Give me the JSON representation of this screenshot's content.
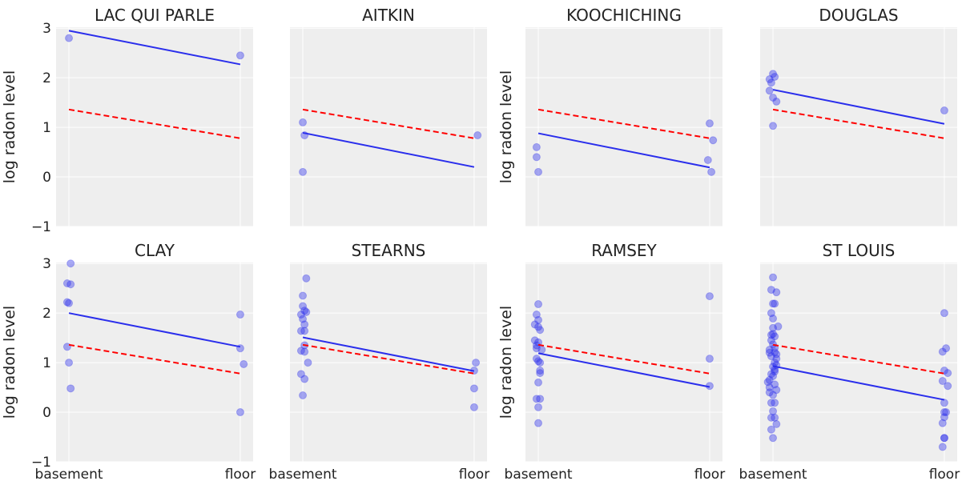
{
  "chart_data": {
    "type": "scatter",
    "layout": "2x4 subplots, shared axes",
    "ylabel": "log radon level",
    "xticks": [
      "basement",
      "floor"
    ],
    "ylim": [
      -1,
      3.02
    ],
    "xlim": [
      -0.075,
      1.075
    ],
    "yticks": [
      -1,
      0,
      1,
      2,
      3
    ],
    "grid": true,
    "colors": {
      "points": "#2a2eec",
      "fit_line": "#2a2eec",
      "pooled_line": "#ff0000",
      "panel_bg": "#eeeeee"
    },
    "pooled_line": {
      "style": "dashed",
      "basement": 1.36,
      "floor": 0.78
    },
    "panels": [
      {
        "title": "LAC QUI PARLE",
        "fit": [
          2.95,
          2.27
        ],
        "points": [
          [
            0,
            2.8
          ],
          [
            1.0,
            2.45
          ]
        ]
      },
      {
        "title": "AITKIN",
        "fit": [
          0.89,
          0.2
        ],
        "points": [
          [
            0,
            1.1
          ],
          [
            0.01,
            0.84
          ],
          [
            0,
            0.1
          ],
          [
            1.02,
            0.84
          ]
        ]
      },
      {
        "title": "KOOCHICHING",
        "fit": [
          0.88,
          0.19
        ],
        "points": [
          [
            -0.01,
            0.6
          ],
          [
            -0.01,
            0.4
          ],
          [
            0,
            0.1
          ],
          [
            1.0,
            1.08
          ],
          [
            1.02,
            0.74
          ],
          [
            0.99,
            0.34
          ],
          [
            1.01,
            0.1
          ]
        ]
      },
      {
        "title": "DOUGLAS",
        "fit": [
          1.76,
          1.07
        ],
        "points": [
          [
            0,
            2.08
          ],
          [
            0.01,
            2.02
          ],
          [
            -0.02,
            1.97
          ],
          [
            -0.01,
            1.9
          ],
          [
            -0.02,
            1.74
          ],
          [
            0,
            1.6
          ],
          [
            0.02,
            1.52
          ],
          [
            0,
            1.03
          ],
          [
            1.0,
            1.34
          ]
        ]
      },
      {
        "title": "CLAY",
        "fit": [
          2.0,
          1.32
        ],
        "points": [
          [
            0.01,
            3.0
          ],
          [
            -0.01,
            2.6
          ],
          [
            0.01,
            2.58
          ],
          [
            -0.01,
            2.22
          ],
          [
            0,
            2.2
          ],
          [
            -0.01,
            1.32
          ],
          [
            0,
            1.0
          ],
          [
            0.01,
            0.48
          ],
          [
            1.0,
            1.97
          ],
          [
            1.0,
            1.29
          ],
          [
            1.02,
            0.97
          ],
          [
            1.0,
            0.0
          ]
        ]
      },
      {
        "title": "STEARNS",
        "fit": [
          1.51,
          0.83
        ],
        "points": [
          [
            0.02,
            2.7
          ],
          [
            0,
            2.35
          ],
          [
            0,
            2.14
          ],
          [
            0.01,
            2.05
          ],
          [
            0.02,
            2.02
          ],
          [
            -0.01,
            1.97
          ],
          [
            0,
            1.88
          ],
          [
            0.01,
            1.77
          ],
          [
            -0.01,
            1.64
          ],
          [
            0.01,
            1.64
          ],
          [
            0.01,
            1.35
          ],
          [
            -0.01,
            1.24
          ],
          [
            0.01,
            1.22
          ],
          [
            0.03,
            1.0
          ],
          [
            -0.01,
            0.77
          ],
          [
            0.01,
            0.67
          ],
          [
            0,
            0.34
          ],
          [
            1.01,
            1.0
          ],
          [
            1.0,
            0.84
          ],
          [
            1.0,
            0.48
          ],
          [
            1.0,
            0.1
          ]
        ]
      },
      {
        "title": "RAMSEY",
        "fit": [
          1.19,
          0.51
        ],
        "points": [
          [
            0,
            2.18
          ],
          [
            -0.01,
            1.97
          ],
          [
            0,
            1.86
          ],
          [
            -0.02,
            1.77
          ],
          [
            0,
            1.72
          ],
          [
            0.01,
            1.66
          ],
          [
            -0.02,
            1.45
          ],
          [
            0,
            1.41
          ],
          [
            -0.01,
            1.35
          ],
          [
            -0.01,
            1.29
          ],
          [
            0.02,
            1.26
          ],
          [
            -0.01,
            1.08
          ],
          [
            0,
            1.03
          ],
          [
            0.01,
            1.0
          ],
          [
            0.01,
            0.84
          ],
          [
            0.01,
            0.79
          ],
          [
            0,
            0.6
          ],
          [
            -0.01,
            0.27
          ],
          [
            0.01,
            0.27
          ],
          [
            0,
            0.1
          ],
          [
            0,
            -0.22
          ],
          [
            1.0,
            2.34
          ],
          [
            1.0,
            1.08
          ],
          [
            1.0,
            0.53
          ]
        ]
      },
      {
        "title": "ST LOUIS",
        "fit": [
          0.93,
          0.25
        ],
        "points": [
          [
            0,
            2.72
          ],
          [
            -0.01,
            2.47
          ],
          [
            0.02,
            2.42
          ],
          [
            0,
            2.19
          ],
          [
            0.01,
            2.19
          ],
          [
            -0.01,
            2.0
          ],
          [
            0,
            1.89
          ],
          [
            0.03,
            1.73
          ],
          [
            0,
            1.7
          ],
          [
            0,
            1.58
          ],
          [
            0.01,
            1.53
          ],
          [
            -0.01,
            1.45
          ],
          [
            0,
            1.37
          ],
          [
            -0.02,
            1.26
          ],
          [
            0.01,
            1.21
          ],
          [
            -0.01,
            1.13
          ],
          [
            0.02,
            1.08
          ],
          [
            0,
            0.92
          ],
          [
            0.01,
            0.86
          ],
          [
            -0.01,
            0.77
          ],
          [
            0,
            0.73
          ],
          [
            -0.03,
            0.61
          ],
          [
            0.01,
            0.56
          ],
          [
            -0.02,
            0.5
          ],
          [
            0.02,
            0.45
          ],
          [
            0,
            0.35
          ],
          [
            0.01,
            0.19
          ],
          [
            -0.01,
            0.19
          ],
          [
            0,
            0.02
          ],
          [
            -0.01,
            -0.11
          ],
          [
            0.01,
            -0.11
          ],
          [
            0.02,
            -0.24
          ],
          [
            -0.01,
            -0.35
          ],
          [
            0,
            -0.52
          ],
          [
            -0.02,
            1.2
          ],
          [
            0.01,
            1.3
          ],
          [
            0.02,
            0.95
          ],
          [
            -0.02,
            0.65
          ],
          [
            0.01,
            1.0
          ],
          [
            -0.01,
            1.56
          ],
          [
            0.02,
            1.17
          ],
          [
            -0.02,
            0.4
          ],
          [
            0.01,
            0.82
          ],
          [
            1.0,
            2.0
          ],
          [
            1.01,
            1.29
          ],
          [
            0.99,
            1.22
          ],
          [
            1.0,
            0.84
          ],
          [
            1.02,
            0.79
          ],
          [
            0.99,
            0.63
          ],
          [
            1.02,
            0.53
          ],
          [
            1.0,
            0.19
          ],
          [
            1.0,
            0.0
          ],
          [
            1.01,
            0.0
          ],
          [
            1.0,
            -0.1
          ],
          [
            0.99,
            -0.22
          ],
          [
            1.0,
            -0.52
          ],
          [
            1.0,
            -0.52
          ],
          [
            0.99,
            -0.7
          ]
        ]
      }
    ]
  }
}
